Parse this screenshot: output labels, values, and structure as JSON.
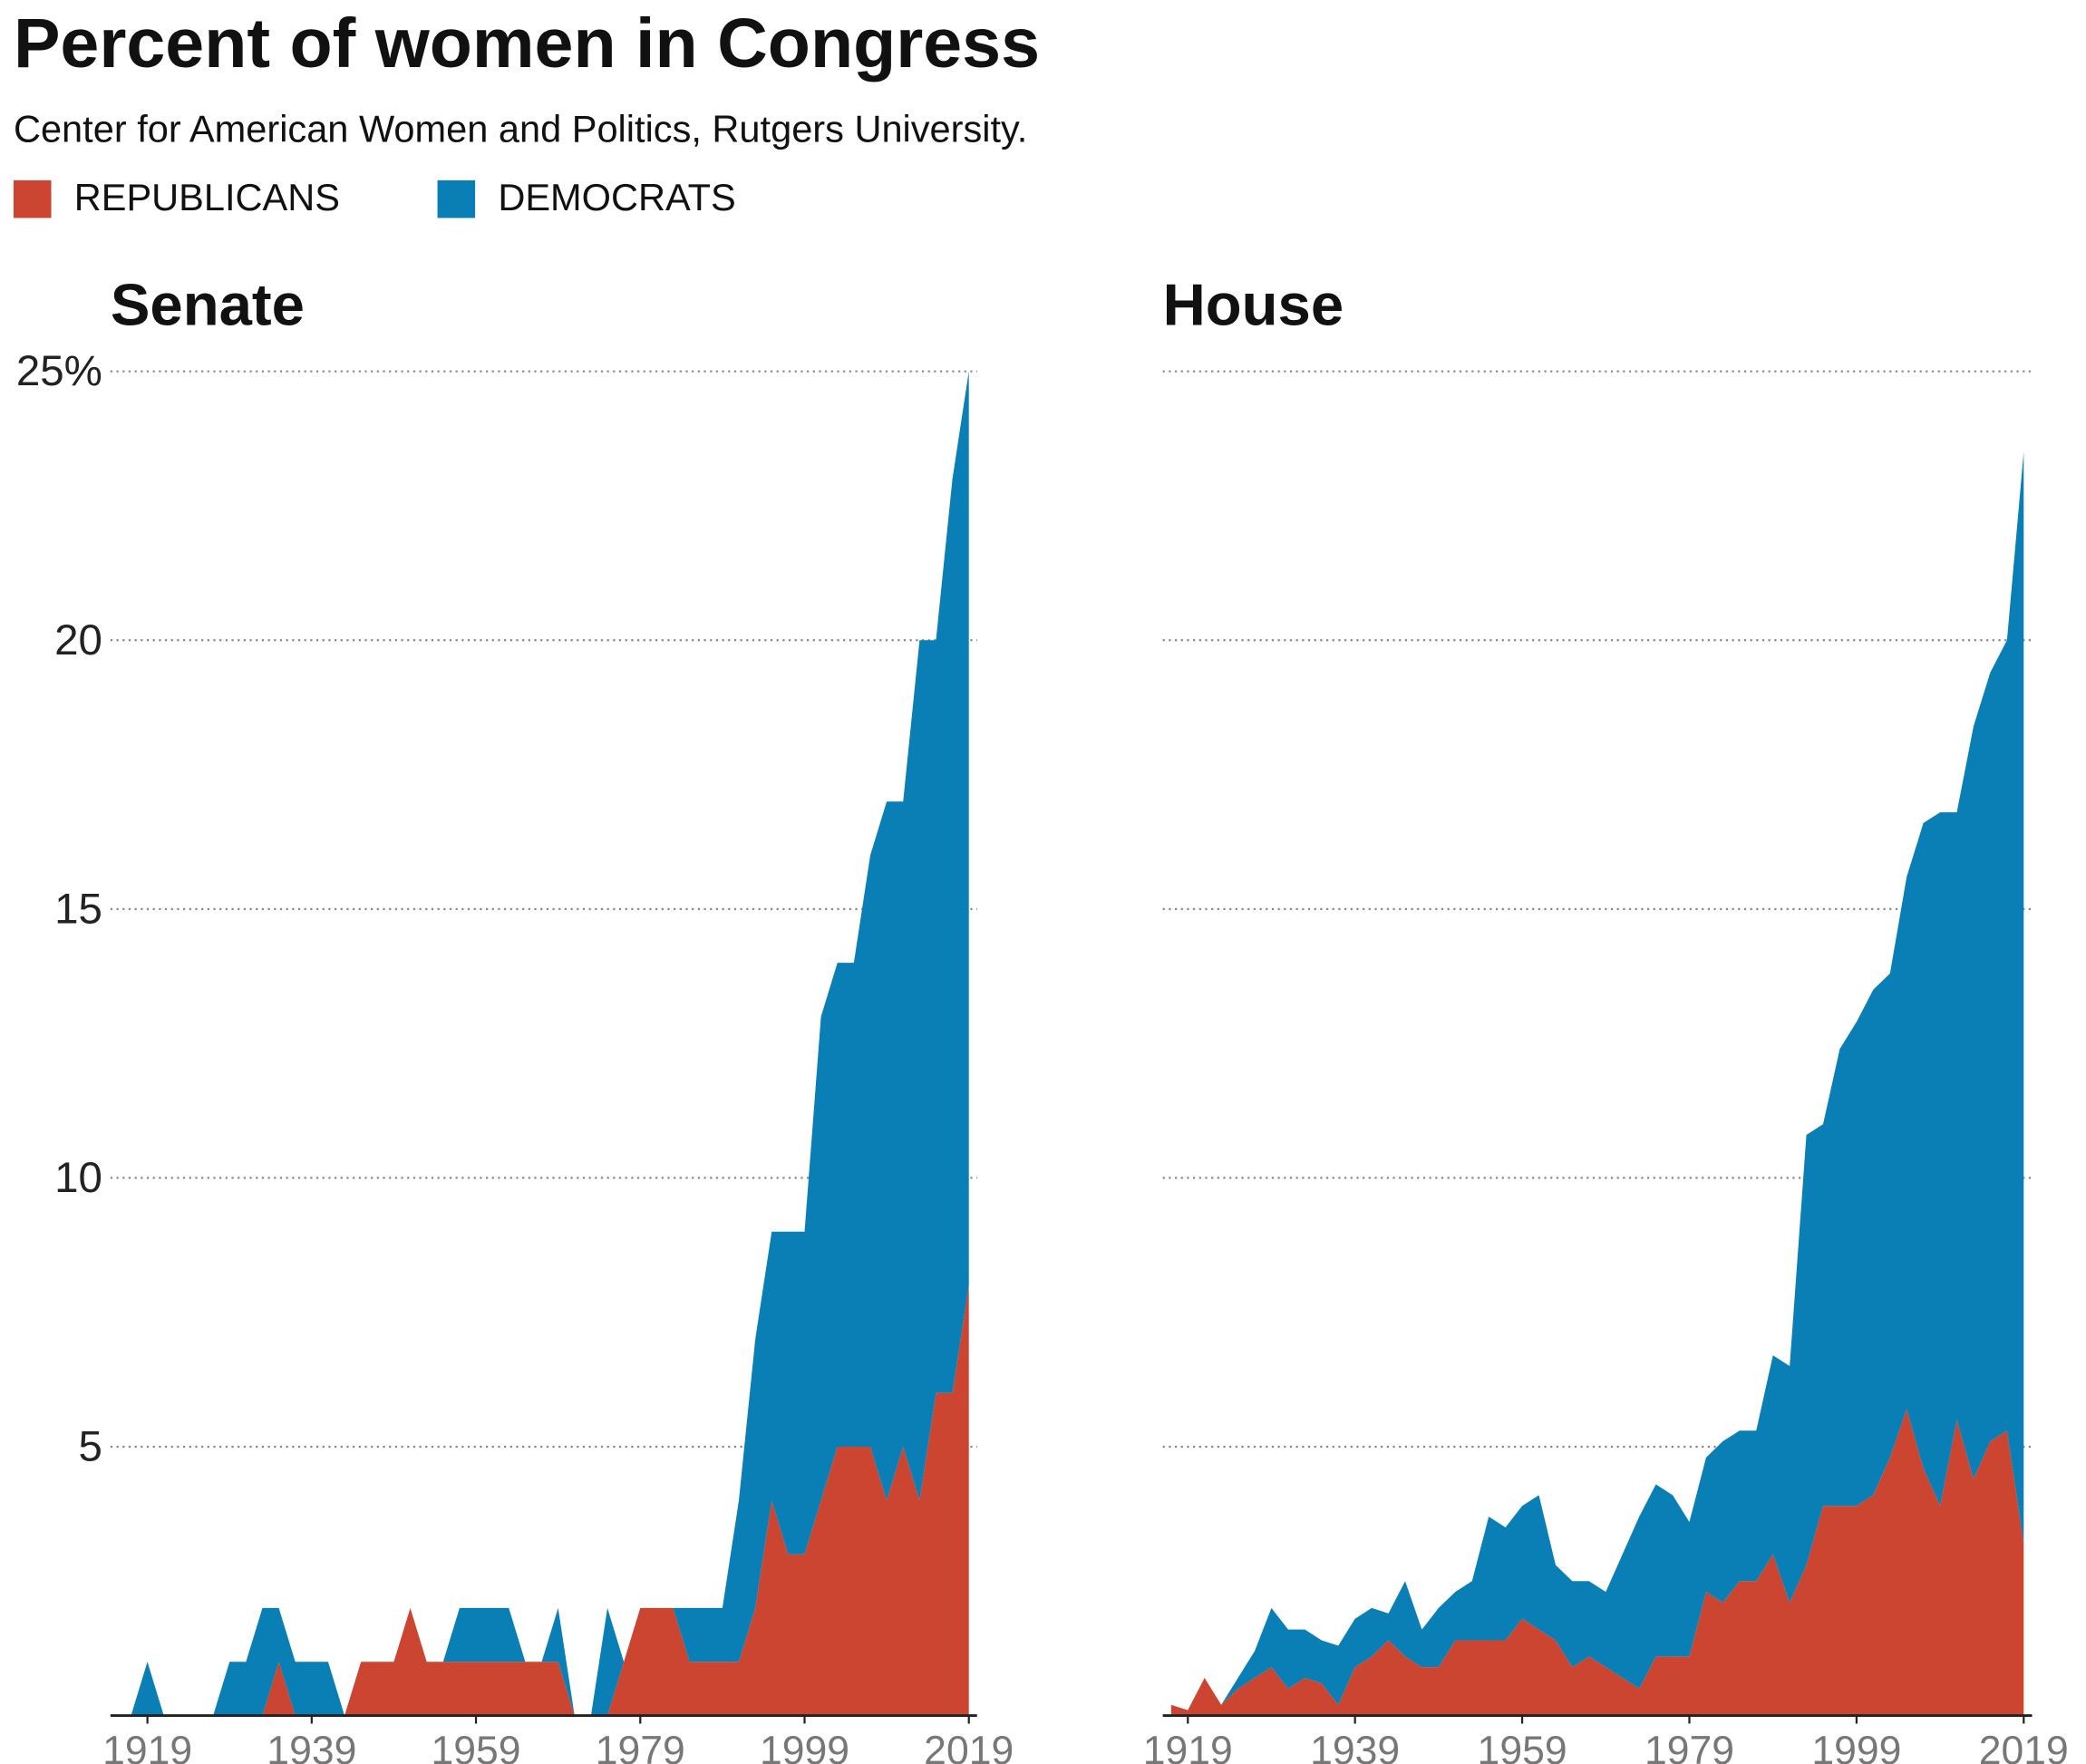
{
  "title": "Percent of women in Congress",
  "subtitle": "Center for American Women and Politics, Rutgers University.",
  "chart_data": [
    {
      "type": "area",
      "stacked": true,
      "title": "Senate",
      "x": [
        1917,
        1919,
        1921,
        1923,
        1925,
        1927,
        1929,
        1931,
        1933,
        1935,
        1937,
        1939,
        1941,
        1943,
        1945,
        1947,
        1949,
        1951,
        1953,
        1955,
        1957,
        1959,
        1961,
        1963,
        1965,
        1967,
        1969,
        1971,
        1973,
        1975,
        1977,
        1979,
        1981,
        1983,
        1985,
        1987,
        1989,
        1991,
        1993,
        1995,
        1997,
        1999,
        2001,
        2003,
        2005,
        2007,
        2009,
        2011,
        2013,
        2015,
        2017,
        2019
      ],
      "series": [
        {
          "name": "REPUBLICANS",
          "color": "#cc4530",
          "values": [
            0,
            0,
            0,
            0,
            0,
            0,
            0,
            0,
            0,
            1,
            0,
            0,
            0,
            0,
            1,
            1,
            1,
            2,
            1,
            1,
            1,
            1,
            1,
            1,
            1,
            1,
            1,
            0,
            0,
            0,
            1,
            2,
            2,
            2,
            1,
            1,
            1,
            1,
            2,
            4,
            3,
            3,
            4,
            5,
            5,
            5,
            4,
            5,
            4,
            6,
            6,
            8
          ]
        },
        {
          "name": "DEMOCRATS",
          "color": "#0a7fb6",
          "values": [
            0,
            1,
            0,
            0,
            0,
            0,
            1,
            1,
            2,
            1,
            1,
            1,
            1,
            0,
            0,
            0,
            0,
            0,
            0,
            0,
            1,
            1,
            1,
            1,
            0,
            0,
            1,
            0,
            0,
            2,
            0,
            0,
            0,
            0,
            1,
            1,
            1,
            3,
            5,
            5,
            6,
            6,
            9,
            9,
            9,
            11,
            13,
            12,
            16,
            14,
            17,
            17
          ]
        }
      ],
      "xlim": [
        1914.5,
        2020
      ],
      "ylim": [
        0,
        25
      ],
      "xticks": [
        1919,
        1939,
        1959,
        1979,
        1999,
        2019
      ],
      "yticks": [
        5,
        10,
        15,
        20,
        {
          "value": 25,
          "label": "25%"
        }
      ],
      "ytick_labels": true,
      "grid": true
    },
    {
      "type": "area",
      "stacked": true,
      "title": "House",
      "x": [
        1917,
        1919,
        1921,
        1923,
        1925,
        1927,
        1929,
        1931,
        1933,
        1935,
        1937,
        1939,
        1941,
        1943,
        1945,
        1947,
        1949,
        1951,
        1953,
        1955,
        1957,
        1959,
        1961,
        1963,
        1965,
        1967,
        1969,
        1971,
        1973,
        1975,
        1977,
        1979,
        1981,
        1983,
        1985,
        1987,
        1989,
        1991,
        1993,
        1995,
        1997,
        1999,
        2001,
        2003,
        2005,
        2007,
        2009,
        2011,
        2013,
        2015,
        2017,
        2019
      ],
      "series": [
        {
          "color": "#cc4530",
          "values": [
            0.2,
            0.1,
            0.7,
            0.2,
            0.5,
            0.7,
            0.9,
            0.5,
            0.7,
            0.6,
            0.2,
            0.9,
            1.1,
            1.4,
            1.1,
            0.9,
            0.9,
            1.4,
            1.4,
            1.4,
            1.4,
            1.8,
            1.6,
            1.4,
            0.9,
            1.1,
            0.9,
            0.7,
            0.5,
            1.1,
            1.1,
            1.1,
            2.3,
            2.1,
            2.5,
            2.5,
            3.0,
            2.1,
            2.8,
            3.9,
            3.9,
            3.9,
            4.1,
            4.8,
            5.7,
            4.6,
            3.9,
            5.5,
            4.4,
            5.1,
            5.3,
            3.2
          ]
        },
        {
          "color": "#0a7fb6",
          "values": [
            0,
            0,
            0,
            0,
            0.2,
            0.5,
            1.1,
            1.1,
            0.9,
            0.8,
            1.1,
            0.9,
            0.9,
            0.5,
            1.4,
            0.7,
            1.1,
            0.9,
            1.1,
            2.3,
            2.1,
            2.1,
            2.5,
            1.4,
            1.6,
            1.4,
            1.4,
            2.3,
            3.2,
            3.2,
            3.0,
            2.5,
            2.5,
            3.0,
            2.8,
            2.8,
            3.7,
            4.4,
            8.0,
            7.1,
            8.5,
            9.0,
            9.4,
            9.0,
            9.9,
            12.0,
            12.9,
            11.3,
            14.0,
            14.3,
            14.7,
            20.3
          ]
        }
      ],
      "xlim": [
        1916,
        2020
      ],
      "ylim": [
        0,
        25
      ],
      "xticks": [
        1919,
        1939,
        1959,
        1979,
        1999,
        2019
      ],
      "yticks": [
        5,
        10,
        15,
        20,
        25
      ],
      "ytick_labels": false,
      "grid": true
    }
  ]
}
